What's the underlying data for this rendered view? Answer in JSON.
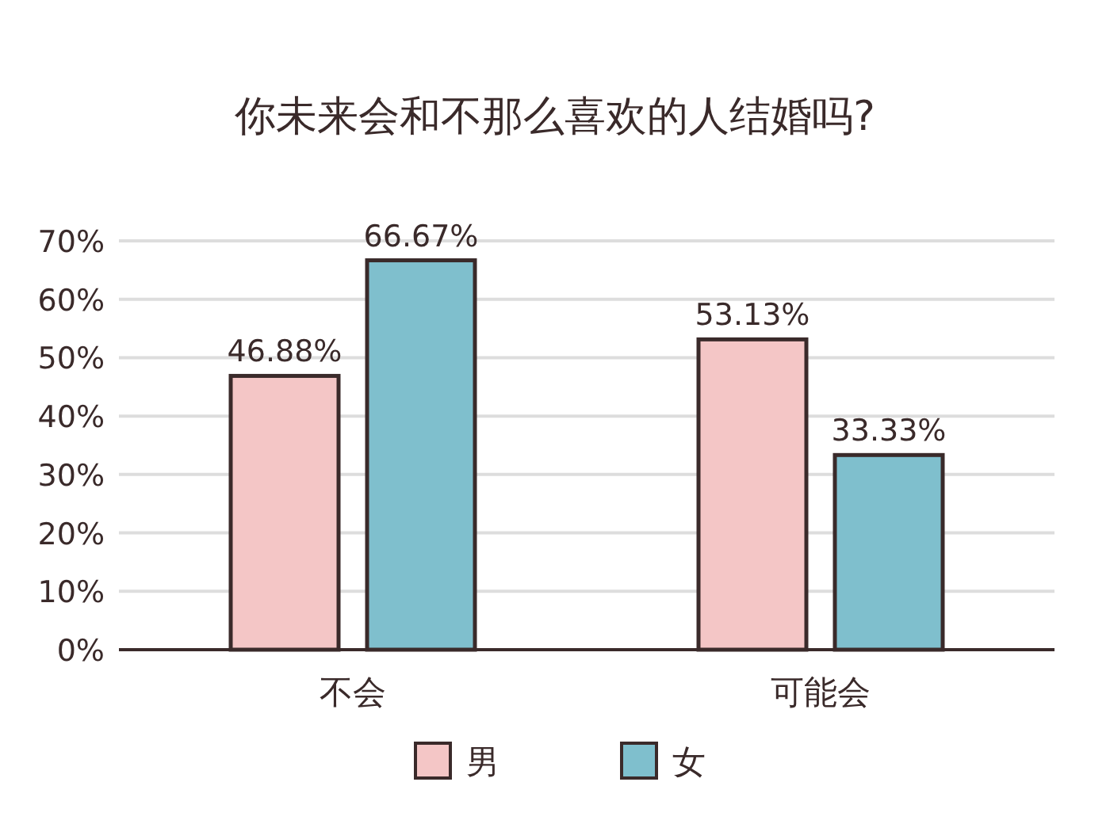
{
  "chart_data": {
    "type": "bar",
    "title": "你未来会和不那么喜欢的人结婚吗?",
    "categories": [
      "不会",
      "可能会"
    ],
    "series": [
      {
        "name": "男",
        "color": "#f4c6c6",
        "values": [
          46.88,
          53.13
        ],
        "value_labels": [
          "46.88%",
          "53.13%"
        ]
      },
      {
        "name": "女",
        "color": "#7fbfcd",
        "values": [
          66.67,
          33.33
        ],
        "value_labels": [
          "66.67%",
          "33.33%"
        ]
      }
    ],
    "ylim": [
      0,
      70
    ],
    "yticks": [
      {
        "value": 0,
        "label": "0%"
      },
      {
        "value": 10,
        "label": "10%"
      },
      {
        "value": 20,
        "label": "20%"
      },
      {
        "value": 30,
        "label": "30%"
      },
      {
        "value": 40,
        "label": "40%"
      },
      {
        "value": 50,
        "label": "50%"
      },
      {
        "value": 60,
        "label": "60%"
      },
      {
        "value": 70,
        "label": "70%"
      }
    ],
    "grid": "y",
    "legend": "bottom"
  }
}
